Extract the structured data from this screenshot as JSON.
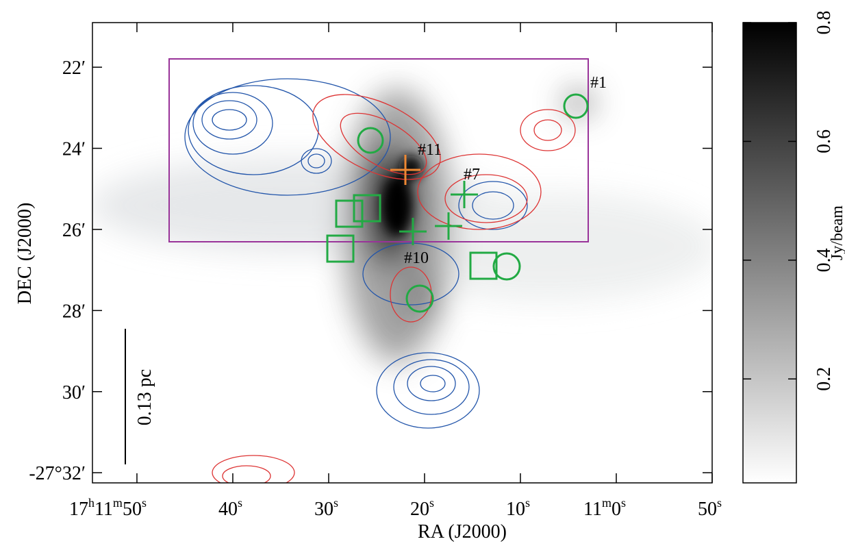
{
  "chart_data": {
    "type": "image",
    "xlabel": "RA (J2000)",
    "ylabel": "DEC (J2000)",
    "xlim": [
      54.64,
      -10
    ],
    "ylim": [
      20.9,
      32.25
    ],
    "xticks": [
      {
        "value": 50,
        "label": [
          "17",
          "h",
          "11",
          "m",
          "50",
          "s"
        ]
      },
      {
        "value": 40,
        "label": [
          "40",
          "s"
        ]
      },
      {
        "value": 30,
        "label": [
          "30",
          "s"
        ]
      },
      {
        "value": 20,
        "label": [
          "20",
          "s"
        ]
      },
      {
        "value": 10,
        "label": [
          "10",
          "s"
        ]
      },
      {
        "value": 0,
        "label": [
          "11",
          "m",
          "0",
          "s"
        ]
      },
      {
        "value": -10,
        "label": [
          "50",
          "s"
        ]
      }
    ],
    "yticks": [
      {
        "value": 22,
        "label": "22′"
      },
      {
        "value": 24,
        "label": "24′"
      },
      {
        "value": 26,
        "label": "26′"
      },
      {
        "value": 28,
        "label": "28′"
      },
      {
        "value": 30,
        "label": "30′"
      },
      {
        "value": 32,
        "label": "-27°32′"
      }
    ],
    "annotations": [
      "#1",
      "#11",
      "#7",
      "#10",
      "0.13 pc"
    ],
    "colorbar": {
      "label": "Jy/beam",
      "lim": [
        0.025,
        0.8
      ],
      "ticks": [
        0.2,
        0.4,
        0.6,
        0.8
      ]
    }
  }
}
